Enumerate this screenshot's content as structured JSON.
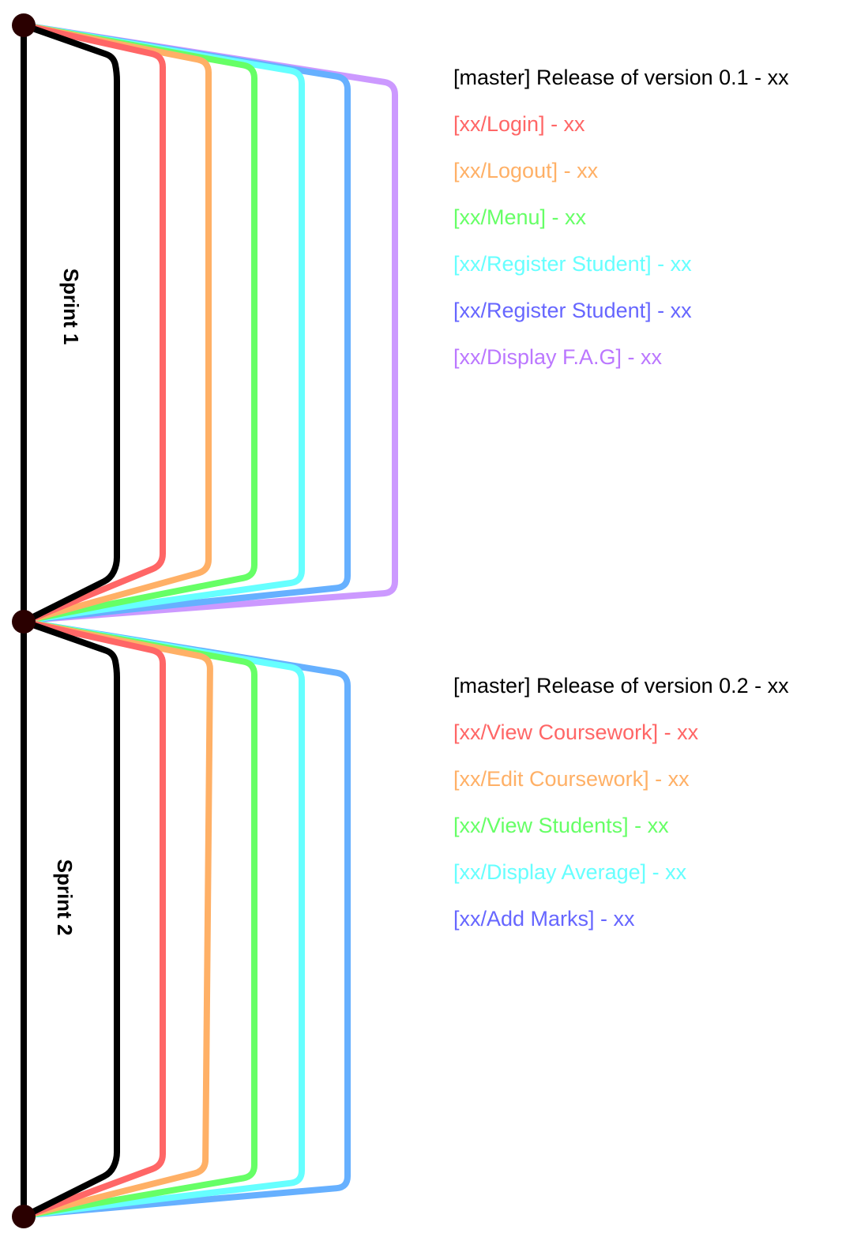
{
  "sprints": [
    {
      "label": "Sprint 1",
      "entries": [
        {
          "text": "[master] Release of version 0.1 - xx",
          "color": "#000000"
        },
        {
          "text": "[xx/Login] - xx",
          "color": "#ff6666"
        },
        {
          "text": "[xx/Logout] - xx",
          "color": "#ffb066"
        },
        {
          "text": "[xx/Menu] - xx",
          "color": "#66ff66"
        },
        {
          "text": "[xx/Register Student] - xx",
          "color": "#66ffff"
        },
        {
          "text": "[xx/Register Student] - xx",
          "color": "#6666ff"
        },
        {
          "text": "[xx/Display F.A.G] - xx",
          "color": "#bb77ff"
        }
      ],
      "branch_colors": [
        "#ff6666",
        "#ffb066",
        "#66ff66",
        "#66ffff",
        "#66b0ff",
        "#cc99ff"
      ]
    },
    {
      "label": "Sprint 2",
      "entries": [
        {
          "text": "[master] Release of version 0.2 - xx",
          "color": "#000000"
        },
        {
          "text": "[xx/View Coursework] - xx",
          "color": "#ff6666"
        },
        {
          "text": "[xx/Edit Coursework] - xx",
          "color": "#ffb066"
        },
        {
          "text": "[xx/View Students] - xx",
          "color": "#66ff66"
        },
        {
          "text": "[xx/Display Average] - xx",
          "color": "#66ffff"
        },
        {
          "text": "[xx/Add Marks] - xx",
          "color": "#6666ff"
        }
      ],
      "branch_colors": [
        "#ff6666",
        "#ffb066",
        "#66ff66",
        "#66ffff",
        "#66b0ff"
      ]
    }
  ],
  "master_color": "#000000",
  "node_color": "#2a0000"
}
